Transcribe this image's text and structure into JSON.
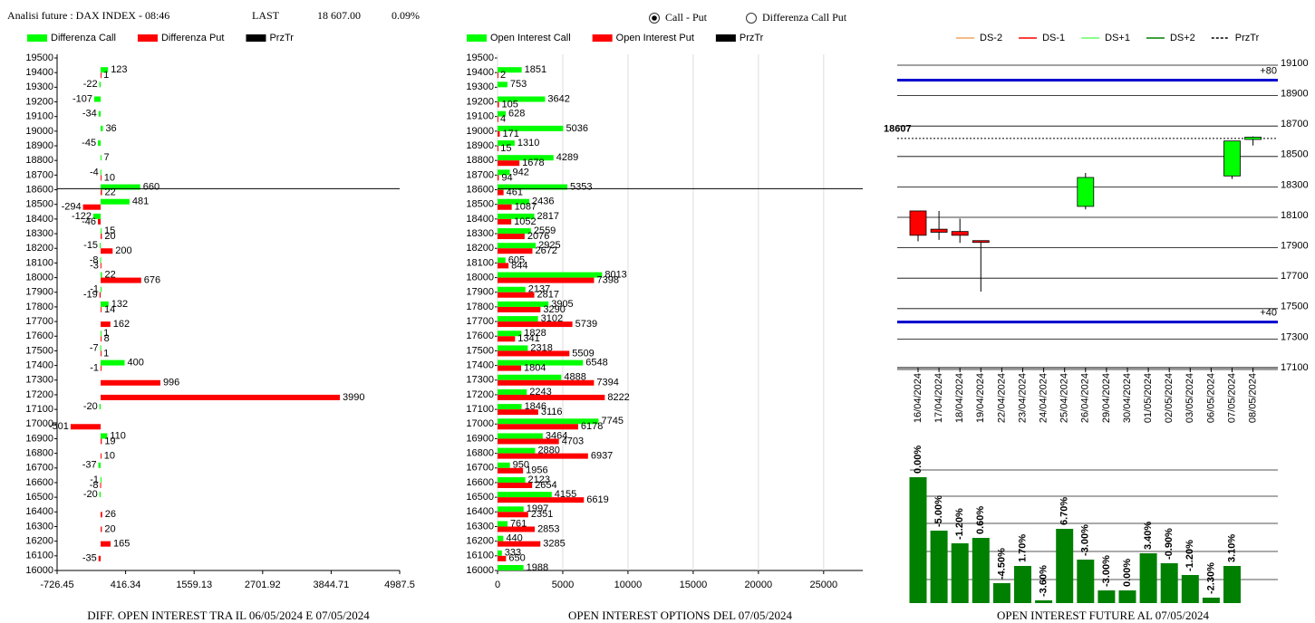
{
  "header": {
    "title": "Analisi future : DAX INDEX - 08:46",
    "last_label": "LAST",
    "last": "18 607.00",
    "change": "0.09%",
    "options": [
      "Call - Put",
      "Differenza Call Put"
    ],
    "selected": 0
  },
  "chart_data": [
    {
      "type": "hbar",
      "title": "DIFF. OPEN INTEREST TRA IL 06/05/2024 E 07/05/2024",
      "categories": [
        19500,
        19400,
        19300,
        19200,
        19100,
        19000,
        18900,
        18800,
        18700,
        18600,
        18500,
        18400,
        18300,
        18200,
        18100,
        18000,
        17900,
        17800,
        17700,
        17600,
        17500,
        17400,
        17300,
        17200,
        17100,
        17000,
        16900,
        16800,
        16700,
        16600,
        16500,
        16400,
        16300,
        16200,
        16100,
        16000
      ],
      "series": [
        {
          "name": "Differenza Call",
          "color": "#00ff00",
          "values": [
            null,
            123,
            -22,
            -107,
            -34,
            36,
            -45,
            7,
            -4,
            660,
            481,
            -122,
            15,
            -15,
            -8,
            22,
            -1,
            132,
            null,
            1,
            -7,
            400,
            null,
            null,
            -20,
            null,
            110,
            null,
            -37,
            -1,
            -20,
            null,
            null,
            null,
            null,
            null
          ]
        },
        {
          "name": "Differenza Put",
          "color": "#ff0000",
          "values": [
            null,
            1,
            null,
            null,
            null,
            null,
            null,
            null,
            10,
            22,
            -294,
            -46,
            20,
            200,
            -3,
            676,
            -19,
            14,
            162,
            8,
            1,
            -1,
            996,
            3990,
            null,
            -501,
            19,
            10,
            null,
            -8,
            null,
            26,
            20,
            165,
            -35,
            null
          ]
        }
      ],
      "reference": {
        "name": "PrzTr",
        "color": "#000000",
        "value": 18607
      },
      "xlim": [
        -726.45,
        4987.5
      ],
      "xticks": [
        -726.45,
        416.34,
        1559.13,
        2701.92,
        3844.71,
        4987.5
      ],
      "grid": false
    },
    {
      "type": "hbar",
      "title": "OPEN INTEREST OPTIONS DEL 07/05/2024",
      "categories": [
        19500,
        19400,
        19300,
        19200,
        19100,
        19000,
        18900,
        18800,
        18700,
        18600,
        18500,
        18400,
        18300,
        18200,
        18100,
        18000,
        17900,
        17800,
        17700,
        17600,
        17500,
        17400,
        17300,
        17200,
        17100,
        17000,
        16900,
        16800,
        16700,
        16600,
        16500,
        16400,
        16300,
        16200,
        16100,
        16000
      ],
      "series": [
        {
          "name": "Open Interest Call",
          "color": "#00ff00",
          "values": [
            null,
            1851,
            753,
            3642,
            628,
            5036,
            1310,
            4289,
            942,
            5353,
            2436,
            2817,
            2559,
            2925,
            605,
            8013,
            2137,
            3905,
            3102,
            1828,
            2318,
            6548,
            4888,
            2243,
            1846,
            7745,
            3464,
            2880,
            950,
            2123,
            4155,
            1997,
            761,
            440,
            333,
            1988
          ]
        },
        {
          "name": "Open Interest Put",
          "color": "#ff0000",
          "values": [
            null,
            2,
            null,
            105,
            4,
            171,
            15,
            1678,
            94,
            461,
            1087,
            1052,
            2076,
            2672,
            844,
            7398,
            2817,
            3290,
            5739,
            1341,
            5509,
            1804,
            7394,
            8222,
            3116,
            6178,
            4703,
            6937,
            1956,
            2654,
            6619,
            2351,
            2853,
            3285,
            650,
            null
          ]
        }
      ],
      "reference": {
        "name": "PrzTr",
        "color": "#000000",
        "value": 18607
      },
      "xlim": [
        0,
        28000
      ],
      "xticks": [
        0,
        5000,
        10000,
        15000,
        20000,
        25000
      ],
      "grid": true
    },
    {
      "type": "candlestick",
      "categories": [
        "16/04/2024",
        "17/04/2024",
        "18/04/2024",
        "19/04/2024",
        "22/04/2024",
        "23/04/2024",
        "24/04/2024",
        "25/04/2024",
        "26/04/2024",
        "29/04/2024",
        "30/04/2024",
        "01/05/2024",
        "02/05/2024",
        "03/05/2024",
        "06/05/2024",
        "07/05/2024",
        "08/05/2024"
      ],
      "open": [
        18130,
        18010,
        17995,
        17935,
        null,
        null,
        null,
        null,
        18160,
        null,
        null,
        null,
        null,
        null,
        null,
        18360,
        18600
      ],
      "high": [
        18130,
        18130,
        18080,
        17935,
        null,
        null,
        null,
        null,
        18380,
        null,
        null,
        null,
        null,
        null,
        null,
        18590,
        18620
      ],
      "low": [
        17930,
        17940,
        17920,
        17600,
        null,
        null,
        null,
        null,
        18140,
        null,
        null,
        null,
        null,
        null,
        null,
        18340,
        18560
      ],
      "close": [
        17970,
        17990,
        17970,
        17925,
        null,
        null,
        null,
        null,
        18350,
        null,
        null,
        null,
        null,
        null,
        null,
        18590,
        18615
      ],
      "up_color": "#00ff00",
      "down_color": "#ff0000",
      "legend": [
        {
          "name": "DS-2",
          "color": "#f4a460",
          "dash": false
        },
        {
          "name": "DS-1",
          "color": "#ff0000",
          "dash": false
        },
        {
          "name": "DS+1",
          "color": "#66ff66",
          "dash": false
        },
        {
          "name": "DS+2",
          "color": "#008000",
          "dash": false
        },
        {
          "name": "PrzTr",
          "color": "#000000",
          "dash": true
        }
      ],
      "bands": [
        {
          "value": 18990,
          "label": "+80",
          "color": "#0000cd"
        },
        {
          "value": 17400,
          "label": "+40",
          "color": "#0000cd"
        }
      ],
      "price": 18607,
      "ylim": [
        17100,
        19100
      ],
      "yticks": [
        19100,
        18900,
        18700,
        18500,
        18300,
        18100,
        17900,
        17700,
        17500,
        17300,
        17100
      ],
      "grid": true
    },
    {
      "type": "bar",
      "title": "OPEN INTEREST FUTURE AL 07/05/2024",
      "values": [
        139,
        80,
        66,
        72,
        22,
        41,
        3,
        82,
        48,
        14,
        14,
        55,
        44,
        31,
        6,
        41
      ],
      "bar_labels": [
        "0.00%",
        "-5.00%",
        "-1.20%",
        "0.60%",
        "-4.50%",
        "1.70%",
        "-3.60%",
        "6.70%",
        "-3.00%",
        "-3.00%",
        "0.00%",
        "3.40%",
        "-0.90%",
        "-1.20%",
        "-2.30%",
        "3.10%"
      ],
      "color": "#008000",
      "ylim": [
        0,
        150
      ]
    }
  ]
}
